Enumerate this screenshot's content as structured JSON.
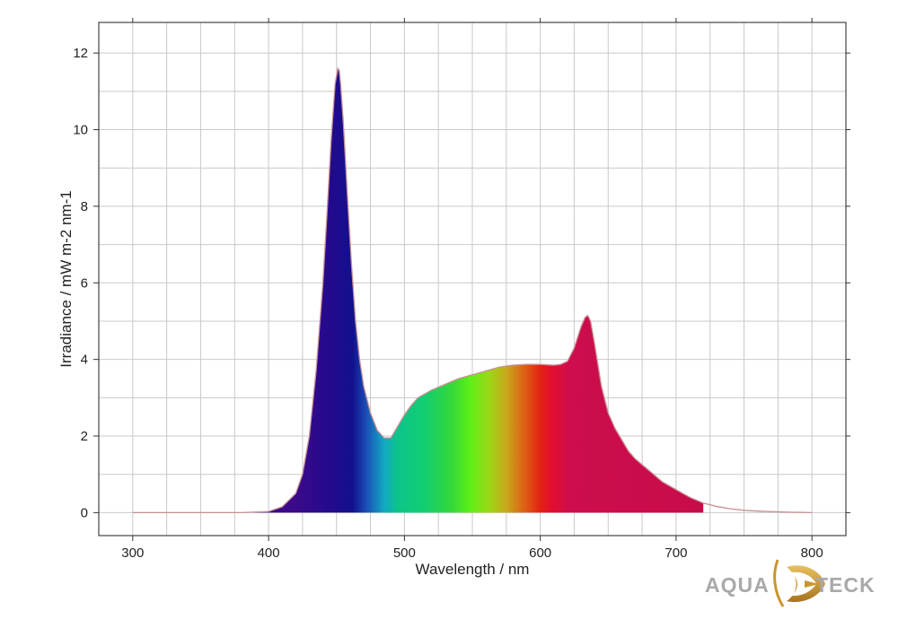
{
  "chart_data": {
    "type": "area",
    "title": "",
    "xlabel": "Wavelength / nm",
    "ylabel": "Irradiance / mW m-2 nm-1",
    "xlim": [
      275,
      825
    ],
    "ylim": [
      -0.6,
      12.8
    ],
    "x_ticks": [
      300,
      400,
      500,
      600,
      700,
      800
    ],
    "y_ticks": [
      0,
      2,
      4,
      6,
      8,
      10,
      12
    ],
    "grid": true,
    "fill_end_nm": 720,
    "spectrum": {
      "x": [
        300,
        380,
        400,
        410,
        420,
        425,
        430,
        435,
        440,
        443,
        446,
        449,
        451,
        452,
        453,
        455,
        458,
        461,
        464,
        467,
        470,
        475,
        480,
        485,
        490,
        495,
        500,
        505,
        510,
        520,
        530,
        540,
        550,
        560,
        570,
        580,
        590,
        600,
        610,
        615,
        620,
        625,
        630,
        633,
        635,
        637,
        640,
        645,
        650,
        655,
        660,
        665,
        670,
        680,
        690,
        700,
        710,
        720,
        730,
        740,
        750,
        760,
        780,
        800
      ],
      "y": [
        0,
        0,
        0.03,
        0.15,
        0.5,
        1.0,
        2.0,
        3.7,
        6.0,
        7.8,
        9.7,
        11.2,
        11.6,
        11.55,
        11.2,
        10.2,
        8.3,
        6.5,
        5.0,
        4.0,
        3.3,
        2.6,
        2.15,
        1.95,
        1.95,
        2.25,
        2.55,
        2.8,
        3.0,
        3.2,
        3.35,
        3.5,
        3.6,
        3.7,
        3.8,
        3.85,
        3.87,
        3.87,
        3.85,
        3.87,
        3.95,
        4.3,
        4.85,
        5.1,
        5.15,
        5.0,
        4.4,
        3.3,
        2.6,
        2.2,
        1.9,
        1.6,
        1.4,
        1.1,
        0.8,
        0.6,
        0.4,
        0.25,
        0.16,
        0.1,
        0.06,
        0.04,
        0.015,
        0
      ]
    },
    "gradient_stops": [
      {
        "nm": 420,
        "color": "#3a0a8a"
      },
      {
        "nm": 445,
        "color": "#230a8c"
      },
      {
        "nm": 462,
        "color": "#12108e"
      },
      {
        "nm": 472,
        "color": "#1a4fb6"
      },
      {
        "nm": 485,
        "color": "#12a8c4"
      },
      {
        "nm": 495,
        "color": "#0cc489"
      },
      {
        "nm": 515,
        "color": "#13ce72"
      },
      {
        "nm": 535,
        "color": "#35d838"
      },
      {
        "nm": 548,
        "color": "#5cf018"
      },
      {
        "nm": 562,
        "color": "#9bd816"
      },
      {
        "nm": 575,
        "color": "#c8a81a"
      },
      {
        "nm": 588,
        "color": "#dd6216"
      },
      {
        "nm": 600,
        "color": "#e22214"
      },
      {
        "nm": 608,
        "color": "#e30e2e"
      },
      {
        "nm": 622,
        "color": "#cd0d4d"
      },
      {
        "nm": 720,
        "color": "#c80c4a"
      }
    ],
    "outline_color": "#c88f93",
    "logo": {
      "text_left": "AQUA",
      "text_right": "TECK",
      "color": "#a9a9a9",
      "accent": "#c9952f"
    }
  }
}
